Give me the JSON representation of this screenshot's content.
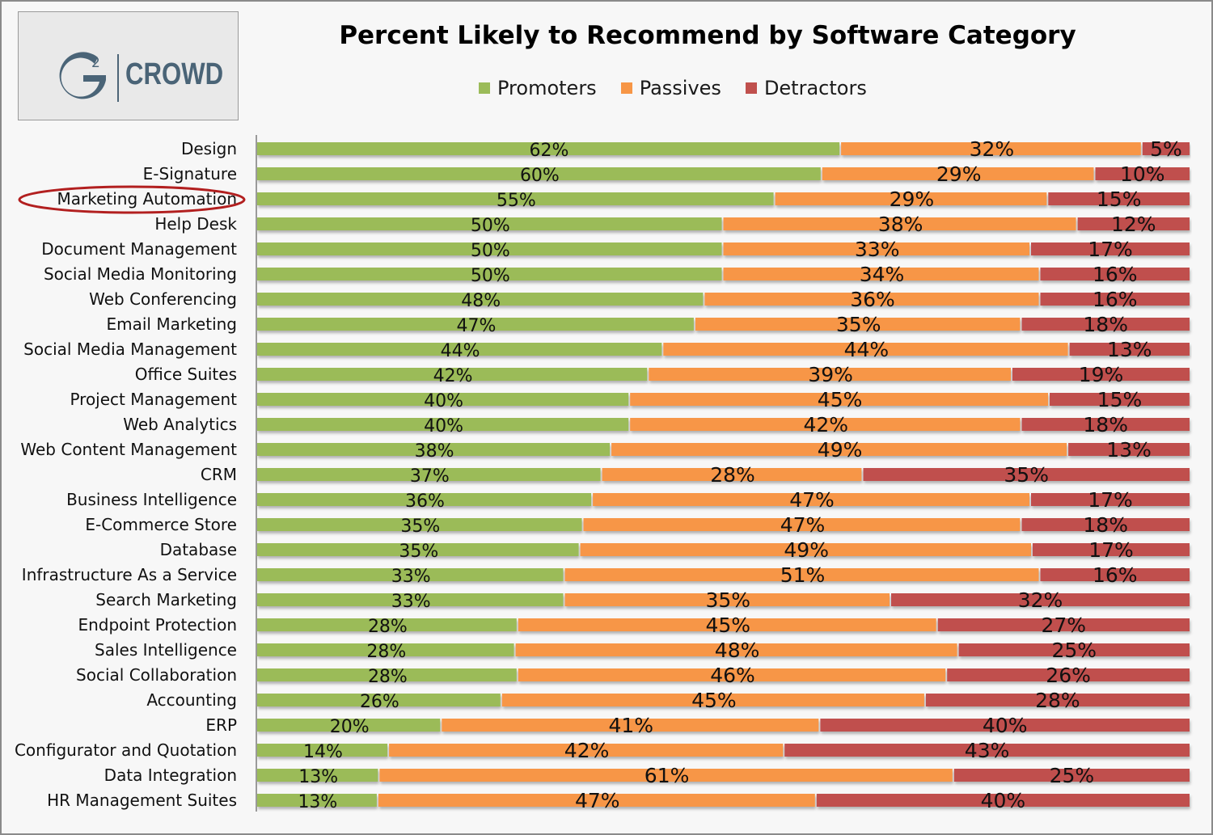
{
  "logo": {
    "mark": "G",
    "superscript": "2",
    "text": "CROWD"
  },
  "chart_data": {
    "type": "bar",
    "orientation": "horizontal",
    "stacked": true,
    "normalized": true,
    "title": "Percent Likely to Recommend by Software Category",
    "xlabel": "",
    "ylabel": "",
    "legend_position": "top",
    "grid": false,
    "value_format": "percent",
    "highlighted_category": "Marketing Automation",
    "categories": [
      "Design",
      "E-Signature",
      "Marketing Automation",
      "Help Desk",
      "Document Management",
      "Social Media Monitoring",
      "Web Conferencing",
      "Email Marketing",
      "Social Media Management",
      "Office Suites",
      "Project Management",
      "Web Analytics",
      "Web Content Management",
      "CRM",
      "Business Intelligence",
      "E-Commerce Store",
      "Database",
      "Infrastructure As a Service",
      "Search Marketing",
      "Endpoint Protection",
      "Sales Intelligence",
      "Social Collaboration",
      "Accounting",
      "ERP",
      "Configurator and Quotation",
      "Data Integration",
      "HR Management Suites"
    ],
    "series": [
      {
        "name": "Promoters",
        "color": "#9bbb59",
        "values": [
          62,
          60,
          55,
          50,
          50,
          50,
          48,
          47,
          44,
          42,
          40,
          40,
          38,
          37,
          36,
          35,
          35,
          33,
          33,
          28,
          28,
          28,
          26,
          20,
          14,
          13,
          13
        ]
      },
      {
        "name": "Passives",
        "color": "#f79646",
        "values": [
          32,
          29,
          29,
          38,
          33,
          34,
          36,
          35,
          44,
          39,
          45,
          42,
          49,
          28,
          47,
          47,
          49,
          51,
          35,
          45,
          48,
          46,
          45,
          41,
          42,
          61,
          47
        ]
      },
      {
        "name": "Detractors",
        "color": "#c0504d",
        "values": [
          5,
          10,
          15,
          12,
          17,
          16,
          16,
          18,
          13,
          19,
          15,
          18,
          13,
          35,
          17,
          18,
          17,
          16,
          32,
          27,
          25,
          26,
          28,
          40,
          43,
          25,
          40
        ]
      }
    ]
  }
}
